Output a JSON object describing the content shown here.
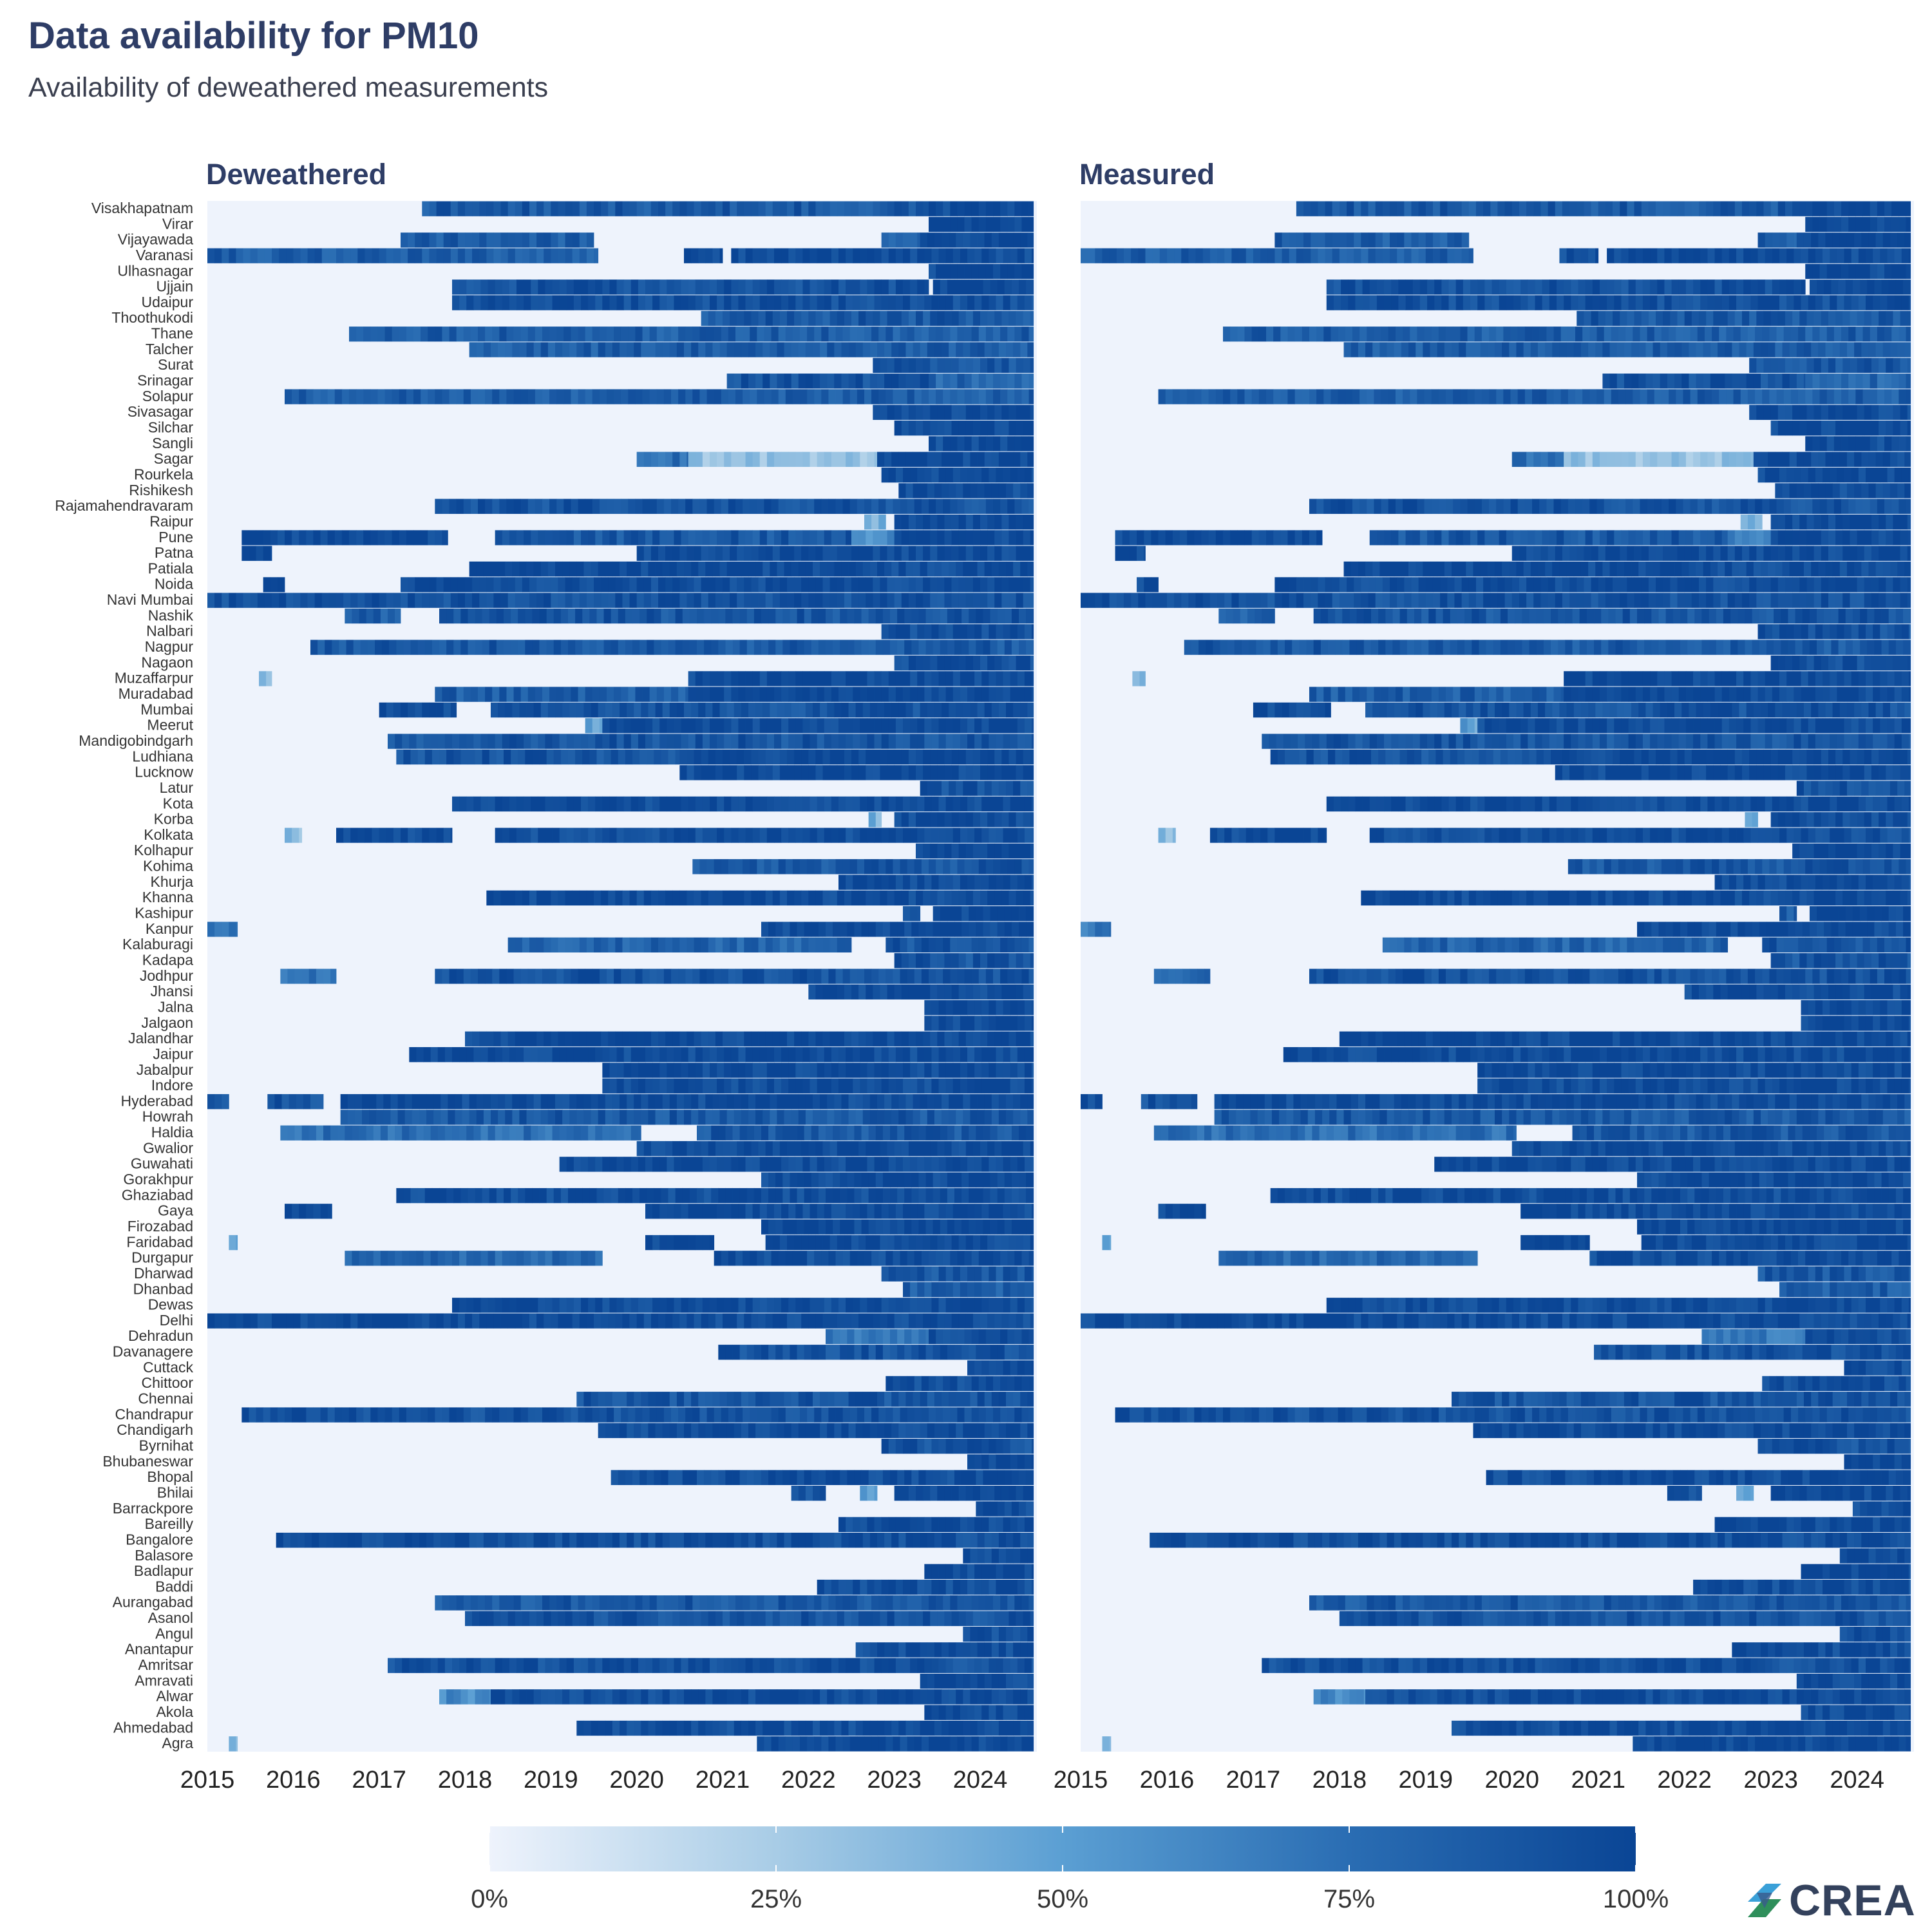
{
  "header": {
    "title": "Data availability for PM10",
    "subtitle": "Availability of deweathered measurements"
  },
  "logo": {
    "text": "CREA",
    "icon": "crea-logo-icon"
  },
  "colors": {
    "low": "#eef3fc",
    "high": "#0a4595"
  },
  "chart_data": {
    "type": "heatmap",
    "title": "Data availability for PM10",
    "subtitle": "Availability of deweathered measurements",
    "panels": [
      "Deweathered",
      "Measured"
    ],
    "x_ticks": [
      "2015",
      "2016",
      "2017",
      "2018",
      "2019",
      "2020",
      "2021",
      "2022",
      "2023",
      "2024"
    ],
    "xlim": [
      "2015-01",
      "2024-08"
    ],
    "value_unit": "availability (0-1)",
    "legend": {
      "position": "bottom",
      "ticks": [
        "0%",
        "25%",
        "50%",
        "75%",
        "100%"
      ],
      "range": [
        0,
        1
      ]
    },
    "rows": [
      {
        "city": "Visakhapatnam",
        "periods": [
          [
            2017.5,
            2023.4,
            0.88
          ],
          [
            2023.4,
            2024.62,
            0.98
          ]
        ]
      },
      {
        "city": "Virar",
        "periods": [
          [
            2023.4,
            2024.62,
            0.98
          ]
        ]
      },
      {
        "city": "Vijayawada",
        "periods": [
          [
            2017.25,
            2019.5,
            0.85
          ],
          [
            2022.85,
            2023.3,
            0.85
          ],
          [
            2023.3,
            2024.62,
            0.98
          ]
        ]
      },
      {
        "city": "Varanasi",
        "periods": [
          [
            2015.0,
            2019.55,
            0.85
          ],
          [
            2020.55,
            2021.0,
            0.95
          ],
          [
            2021.1,
            2024.62,
            0.97
          ]
        ]
      },
      {
        "city": "Ulhasnagar",
        "periods": [
          [
            2023.4,
            2024.62,
            0.98
          ]
        ]
      },
      {
        "city": "Ujjain",
        "periods": [
          [
            2017.85,
            2023.4,
            0.93
          ],
          [
            2023.45,
            2024.62,
            0.98
          ]
        ]
      },
      {
        "city": "Udaipur",
        "periods": [
          [
            2017.85,
            2024.62,
            0.95
          ]
        ]
      },
      {
        "city": "Thoothukodi",
        "periods": [
          [
            2020.75,
            2024.62,
            0.88
          ]
        ]
      },
      {
        "city": "Thane",
        "periods": [
          [
            2016.65,
            2024.62,
            0.85
          ]
        ]
      },
      {
        "city": "Talcher",
        "periods": [
          [
            2018.05,
            2024.62,
            0.85
          ]
        ]
      },
      {
        "city": "Surat",
        "periods": [
          [
            2022.75,
            2024.62,
            0.9
          ]
        ]
      },
      {
        "city": "Srinagar",
        "periods": [
          [
            2021.05,
            2023.4,
            0.92
          ],
          [
            2023.4,
            2024.62,
            0.8
          ]
        ]
      },
      {
        "city": "Solapur",
        "periods": [
          [
            2015.9,
            2024.62,
            0.85
          ]
        ]
      },
      {
        "city": "Sivasagar",
        "periods": [
          [
            2022.75,
            2024.62,
            0.98
          ]
        ]
      },
      {
        "city": "Silchar",
        "periods": [
          [
            2023.0,
            2024.62,
            0.98
          ]
        ]
      },
      {
        "city": "Sangli",
        "periods": [
          [
            2023.4,
            2024.62,
            0.95
          ]
        ]
      },
      {
        "city": "Sagar",
        "periods": [
          [
            2020.0,
            2020.6,
            0.75
          ],
          [
            2020.6,
            2022.8,
            0.3
          ],
          [
            2022.8,
            2024.62,
            0.98
          ]
        ]
      },
      {
        "city": "Rourkela",
        "periods": [
          [
            2022.85,
            2024.62,
            0.98
          ]
        ]
      },
      {
        "city": "Rishikesh",
        "periods": [
          [
            2023.05,
            2024.62,
            0.95
          ]
        ]
      },
      {
        "city": "Rajamahendravaram",
        "periods": [
          [
            2017.65,
            2024.62,
            0.92
          ]
        ]
      },
      {
        "city": "Raipur",
        "periods": [
          [
            2022.65,
            2022.9,
            0.4
          ],
          [
            2023.0,
            2024.62,
            0.98
          ]
        ]
      },
      {
        "city": "Pune",
        "periods": [
          [
            2015.4,
            2017.8,
            0.97
          ],
          [
            2018.35,
            2022.5,
            0.88
          ],
          [
            2022.5,
            2023.0,
            0.6
          ],
          [
            2023.0,
            2024.62,
            0.98
          ]
        ]
      },
      {
        "city": "Patna",
        "periods": [
          [
            2015.4,
            2015.75,
            0.97
          ],
          [
            2020.0,
            2024.62,
            0.98
          ]
        ]
      },
      {
        "city": "Patiala",
        "periods": [
          [
            2018.05,
            2024.62,
            0.97
          ]
        ]
      },
      {
        "city": "Noida",
        "periods": [
          [
            2015.65,
            2015.9,
            0.97
          ],
          [
            2017.25,
            2024.62,
            0.97
          ]
        ]
      },
      {
        "city": "Navi Mumbai",
        "periods": [
          [
            2015.0,
            2024.62,
            0.93
          ]
        ]
      },
      {
        "city": "Nashik",
        "periods": [
          [
            2016.6,
            2017.25,
            0.85
          ],
          [
            2017.7,
            2024.62,
            0.9
          ]
        ]
      },
      {
        "city": "Nalbari",
        "periods": [
          [
            2022.85,
            2024.62,
            0.92
          ]
        ]
      },
      {
        "city": "Nagpur",
        "periods": [
          [
            2016.2,
            2024.62,
            0.88
          ]
        ]
      },
      {
        "city": "Nagaon",
        "periods": [
          [
            2023.0,
            2024.62,
            0.95
          ]
        ]
      },
      {
        "city": "Muzaffarpur",
        "periods": [
          [
            2015.6,
            2015.75,
            0.35
          ],
          [
            2020.6,
            2024.62,
            0.98
          ]
        ]
      },
      {
        "city": "Muradabad",
        "periods": [
          [
            2017.65,
            2020.6,
            0.85
          ],
          [
            2020.6,
            2024.62,
            0.98
          ]
        ]
      },
      {
        "city": "Mumbai",
        "periods": [
          [
            2017.0,
            2017.9,
            0.97
          ],
          [
            2018.3,
            2024.62,
            0.92
          ]
        ]
      },
      {
        "city": "Meerut",
        "periods": [
          [
            2019.4,
            2019.6,
            0.5
          ],
          [
            2019.6,
            2024.62,
            0.98
          ]
        ]
      },
      {
        "city": "Mandigobindgarh",
        "periods": [
          [
            2017.1,
            2024.62,
            0.9
          ]
        ]
      },
      {
        "city": "Ludhiana",
        "periods": [
          [
            2017.2,
            2020.5,
            0.9
          ],
          [
            2020.5,
            2024.62,
            0.98
          ]
        ]
      },
      {
        "city": "Lucknow",
        "periods": [
          [
            2020.5,
            2024.62,
            0.97
          ]
        ]
      },
      {
        "city": "Latur",
        "periods": [
          [
            2023.3,
            2024.62,
            0.92
          ]
        ]
      },
      {
        "city": "Kota",
        "periods": [
          [
            2017.85,
            2024.62,
            0.97
          ]
        ]
      },
      {
        "city": "Korba",
        "periods": [
          [
            2022.7,
            2022.85,
            0.4
          ],
          [
            2023.0,
            2024.62,
            0.97
          ]
        ]
      },
      {
        "city": "Kolkata",
        "periods": [
          [
            2015.9,
            2016.1,
            0.35
          ],
          [
            2016.5,
            2017.85,
            0.97
          ],
          [
            2018.35,
            2024.62,
            0.95
          ]
        ]
      },
      {
        "city": "Kolhapur",
        "periods": [
          [
            2023.25,
            2024.62,
            0.97
          ]
        ]
      },
      {
        "city": "Kohima",
        "periods": [
          [
            2020.65,
            2024.62,
            0.88
          ]
        ]
      },
      {
        "city": "Khurja",
        "periods": [
          [
            2022.35,
            2024.62,
            0.97
          ]
        ]
      },
      {
        "city": "Khanna",
        "periods": [
          [
            2018.25,
            2024.62,
            0.97
          ]
        ]
      },
      {
        "city": "Kashipur",
        "periods": [
          [
            2023.1,
            2023.3,
            0.85
          ],
          [
            2023.45,
            2024.62,
            0.97
          ]
        ]
      },
      {
        "city": "Kanpur",
        "periods": [
          [
            2015.0,
            2015.35,
            0.7
          ],
          [
            2021.45,
            2024.62,
            0.97
          ]
        ]
      },
      {
        "city": "Kalaburagi",
        "periods": [
          [
            2018.5,
            2022.5,
            0.82
          ],
          [
            2022.9,
            2024.62,
            0.9
          ]
        ]
      },
      {
        "city": "Kadapa",
        "periods": [
          [
            2023.0,
            2024.62,
            0.9
          ]
        ]
      },
      {
        "city": "Jodhpur",
        "periods": [
          [
            2015.85,
            2016.5,
            0.75
          ],
          [
            2017.65,
            2024.62,
            0.93
          ]
        ]
      },
      {
        "city": "Jhansi",
        "periods": [
          [
            2022.0,
            2024.62,
            0.97
          ]
        ]
      },
      {
        "city": "Jalna",
        "periods": [
          [
            2023.35,
            2024.62,
            0.98
          ]
        ]
      },
      {
        "city": "Jalgaon",
        "periods": [
          [
            2023.35,
            2024.62,
            0.98
          ]
        ]
      },
      {
        "city": "Jalandhar",
        "periods": [
          [
            2018.0,
            2024.62,
            0.98
          ]
        ]
      },
      {
        "city": "Jaipur",
        "periods": [
          [
            2017.35,
            2024.62,
            0.97
          ]
        ]
      },
      {
        "city": "Jabalpur",
        "periods": [
          [
            2019.6,
            2024.62,
            0.98
          ]
        ]
      },
      {
        "city": "Indore",
        "periods": [
          [
            2019.6,
            2024.62,
            0.97
          ]
        ]
      },
      {
        "city": "Hyderabad",
        "periods": [
          [
            2015.0,
            2015.25,
            0.9
          ],
          [
            2015.7,
            2016.35,
            0.92
          ],
          [
            2016.55,
            2024.62,
            0.97
          ]
        ]
      },
      {
        "city": "Howrah",
        "periods": [
          [
            2016.55,
            2024.62,
            0.88
          ]
        ]
      },
      {
        "city": "Haldia",
        "periods": [
          [
            2015.85,
            2020.05,
            0.75
          ],
          [
            2020.7,
            2024.62,
            0.88
          ]
        ]
      },
      {
        "city": "Gwalior",
        "periods": [
          [
            2020.0,
            2024.62,
            0.98
          ]
        ]
      },
      {
        "city": "Guwahati",
        "periods": [
          [
            2019.1,
            2024.62,
            0.97
          ]
        ]
      },
      {
        "city": "Gorakhpur",
        "periods": [
          [
            2021.45,
            2024.62,
            0.98
          ]
        ]
      },
      {
        "city": "Ghaziabad",
        "periods": [
          [
            2017.2,
            2024.62,
            0.96
          ]
        ]
      },
      {
        "city": "Gaya",
        "periods": [
          [
            2015.9,
            2016.45,
            0.95
          ],
          [
            2020.1,
            2024.62,
            0.98
          ]
        ]
      },
      {
        "city": "Firozabad",
        "periods": [
          [
            2021.45,
            2024.62,
            0.98
          ]
        ]
      },
      {
        "city": "Faridabad",
        "periods": [
          [
            2015.25,
            2015.35,
            0.5
          ],
          [
            2020.1,
            2020.9,
            0.97
          ],
          [
            2021.5,
            2024.62,
            0.98
          ]
        ]
      },
      {
        "city": "Durgapur",
        "periods": [
          [
            2016.6,
            2019.6,
            0.8
          ],
          [
            2020.9,
            2024.62,
            0.95
          ]
        ]
      },
      {
        "city": "Dharwad",
        "periods": [
          [
            2022.85,
            2024.62,
            0.88
          ]
        ]
      },
      {
        "city": "Dhanbad",
        "periods": [
          [
            2023.1,
            2024.62,
            0.85
          ]
        ]
      },
      {
        "city": "Dewas",
        "periods": [
          [
            2017.85,
            2024.62,
            0.97
          ]
        ]
      },
      {
        "city": "Delhi",
        "periods": [
          [
            2015.0,
            2024.62,
            0.97
          ]
        ]
      },
      {
        "city": "Dehradun",
        "periods": [
          [
            2022.2,
            2023.4,
            0.7
          ],
          [
            2023.4,
            2024.62,
            0.97
          ]
        ]
      },
      {
        "city": "Davanagere",
        "periods": [
          [
            2020.95,
            2024.62,
            0.92
          ]
        ]
      },
      {
        "city": "Cuttack",
        "periods": [
          [
            2023.85,
            2024.62,
            0.95
          ]
        ]
      },
      {
        "city": "Chittoor",
        "periods": [
          [
            2022.9,
            2024.62,
            0.95
          ]
        ]
      },
      {
        "city": "Chennai",
        "periods": [
          [
            2019.3,
            2024.62,
            0.9
          ]
        ]
      },
      {
        "city": "Chandrapur",
        "periods": [
          [
            2015.4,
            2024.62,
            0.93
          ]
        ]
      },
      {
        "city": "Chandigarh",
        "periods": [
          [
            2019.55,
            2024.62,
            0.97
          ]
        ]
      },
      {
        "city": "Byrnihat",
        "periods": [
          [
            2022.85,
            2024.62,
            0.92
          ]
        ]
      },
      {
        "city": "Bhubaneswar",
        "periods": [
          [
            2023.85,
            2024.62,
            0.98
          ]
        ]
      },
      {
        "city": "Bhopal",
        "periods": [
          [
            2019.7,
            2024.62,
            0.96
          ]
        ]
      },
      {
        "city": "Bhilai",
        "periods": [
          [
            2021.8,
            2022.2,
            0.9
          ],
          [
            2022.6,
            2022.8,
            0.5
          ],
          [
            2023.0,
            2024.62,
            0.98
          ]
        ]
      },
      {
        "city": "Barrackpore",
        "periods": [
          [
            2023.95,
            2024.62,
            0.95
          ]
        ]
      },
      {
        "city": "Bareilly",
        "periods": [
          [
            2022.35,
            2024.62,
            0.98
          ]
        ]
      },
      {
        "city": "Bangalore",
        "periods": [
          [
            2015.8,
            2024.62,
            0.95
          ]
        ]
      },
      {
        "city": "Balasore",
        "periods": [
          [
            2023.8,
            2024.62,
            0.98
          ]
        ]
      },
      {
        "city": "Badlapur",
        "periods": [
          [
            2023.35,
            2024.62,
            0.98
          ]
        ]
      },
      {
        "city": "Baddi",
        "periods": [
          [
            2022.1,
            2024.62,
            0.95
          ]
        ]
      },
      {
        "city": "Aurangabad",
        "periods": [
          [
            2017.65,
            2024.62,
            0.88
          ]
        ]
      },
      {
        "city": "Asanol",
        "periods": [
          [
            2018.0,
            2024.62,
            0.92
          ]
        ]
      },
      {
        "city": "Angul",
        "periods": [
          [
            2023.8,
            2024.62,
            0.95
          ]
        ]
      },
      {
        "city": "Anantapur",
        "periods": [
          [
            2022.55,
            2024.62,
            0.95
          ]
        ]
      },
      {
        "city": "Amritsar",
        "periods": [
          [
            2017.1,
            2024.62,
            0.93
          ]
        ]
      },
      {
        "city": "Amravati",
        "periods": [
          [
            2023.3,
            2024.62,
            0.98
          ]
        ]
      },
      {
        "city": "Alwar",
        "periods": [
          [
            2017.7,
            2018.3,
            0.6
          ],
          [
            2018.3,
            2024.62,
            0.97
          ]
        ]
      },
      {
        "city": "Akola",
        "periods": [
          [
            2023.35,
            2024.62,
            0.98
          ]
        ]
      },
      {
        "city": "Ahmedabad",
        "periods": [
          [
            2019.3,
            2024.62,
            0.95
          ]
        ]
      },
      {
        "city": "Agra",
        "periods": [
          [
            2015.25,
            2015.35,
            0.4
          ],
          [
            2021.4,
            2024.62,
            0.98
          ]
        ]
      }
    ]
  }
}
